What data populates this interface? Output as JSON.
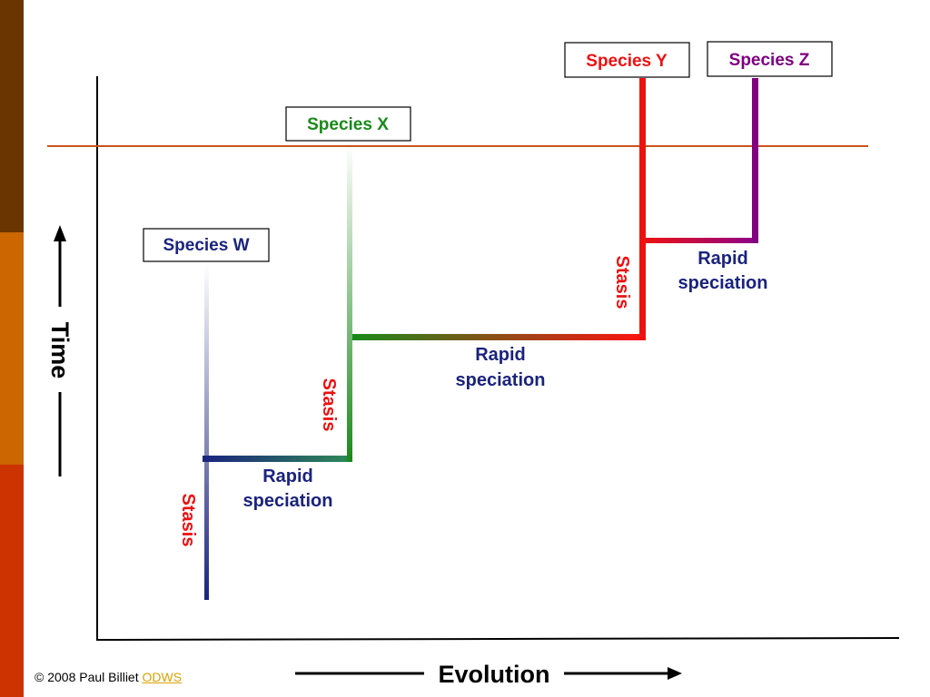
{
  "colors": {
    "band_top": "#6b3500",
    "band_mid": "#cc6600",
    "band_bottom": "#cc3300",
    "horizon_line": "#c8541a",
    "species_w": "#1a237e",
    "species_x": "#1a8a1a",
    "species_y": "#ee1111",
    "species_z": "#800080",
    "speciation_text": "#1a237e",
    "stasis_text": "#ee1111"
  },
  "species": {
    "w": "Species W",
    "x": "Species X",
    "y": "Species Y",
    "z": "Species Z"
  },
  "labels": {
    "stasis_1": "Stasis",
    "stasis_2": "Stasis",
    "stasis_3": "Stasis",
    "speciation_1_line1": "Rapid",
    "speciation_1_line2": "speciation",
    "speciation_2_line1": "Rapid",
    "speciation_2_line2": "speciation",
    "speciation_3_line1": "Rapid",
    "speciation_3_line2": "speciation"
  },
  "axes": {
    "x_label": "Evolution",
    "y_label": "Time"
  },
  "footer": {
    "copyright": "© 2008 Paul Billiet ",
    "link_text": "ODWS"
  }
}
